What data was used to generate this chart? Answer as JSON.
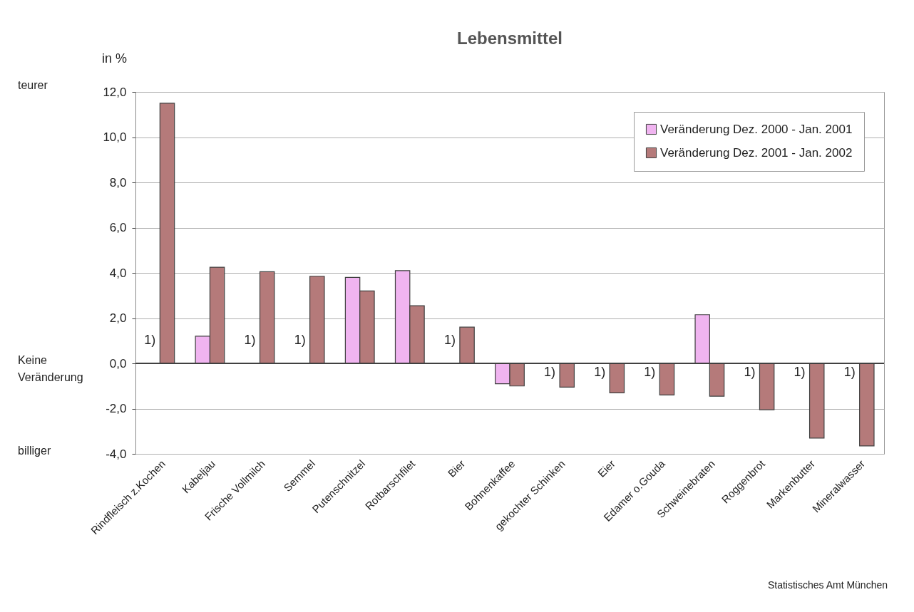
{
  "chart_data": {
    "type": "bar",
    "title": "Lebensmittel",
    "ylabel": "in %",
    "categories": [
      "Rindfleisch z.Kochen",
      "Kabeljau",
      "Frische Vollmilch",
      "Semmel",
      "Putenschnitzel",
      "Rotbarschfilet",
      "Bier",
      "Bohnenkaffee",
      "gekochter Schinken",
      "Eier",
      "Edamer o.Gouda",
      "Schweinebraten",
      "Roggenbrot",
      "Markenbutter",
      "Mineralwasser"
    ],
    "series": [
      {
        "name": "Veränderung Dez. 2000 - Jan. 2001",
        "color": "#f0b4f0",
        "values": [
          null,
          1.2,
          null,
          null,
          3.8,
          4.1,
          null,
          -0.9,
          null,
          null,
          null,
          2.15,
          null,
          null,
          null
        ]
      },
      {
        "name": "Veränderung Dez. 2001 - Jan. 2002",
        "color": "#b57a7a",
        "values": [
          11.5,
          4.25,
          4.05,
          3.85,
          3.2,
          2.55,
          1.6,
          -1.0,
          -1.05,
          -1.3,
          -1.4,
          -1.45,
          -2.05,
          -3.3,
          -3.65
        ]
      }
    ],
    "ylim": [
      -4,
      12
    ],
    "yticks": [
      {
        "value": -4,
        "label": "-4,0"
      },
      {
        "value": -2,
        "label": "-2,0"
      },
      {
        "value": 0,
        "label": "0,0"
      },
      {
        "value": 2,
        "label": "2,0"
      },
      {
        "value": 4,
        "label": "4,0"
      },
      {
        "value": 6,
        "label": "6,0"
      },
      {
        "value": 8,
        "label": "8,0"
      },
      {
        "value": 10,
        "label": "10,0"
      },
      {
        "value": 12,
        "label": "12,0"
      }
    ],
    "grid": "y",
    "legend": "top right",
    "ref_lines": [
      {
        "axis": "y",
        "value": 0,
        "color": "#404040"
      }
    ],
    "annotations": [
      {
        "text": "1)",
        "x": "Rindfleisch z.Kochen",
        "y": 1.0
      },
      {
        "text": "1)",
        "x": "Frische Vollmilch",
        "y": 1.0
      },
      {
        "text": "1)",
        "x": "Semmel",
        "y": 1.0
      },
      {
        "text": "1)",
        "x": "Bier",
        "y": 1.0
      },
      {
        "text": "1)",
        "x": "gekochter Schinken",
        "y": -0.4
      },
      {
        "text": "1)",
        "x": "Eier",
        "y": -0.4
      },
      {
        "text": "1)",
        "x": "Edamer o.Gouda",
        "y": -0.4
      },
      {
        "text": "1)",
        "x": "Roggenbrot",
        "y": -0.4
      },
      {
        "text": "1)",
        "x": "Markenbutter",
        "y": -0.4
      },
      {
        "text": "1)",
        "x": "Mineralwasser",
        "y": -0.4
      },
      "teurer",
      "Keine Veränderung",
      "billiger",
      "Statistisches Amt München"
    ]
  }
}
